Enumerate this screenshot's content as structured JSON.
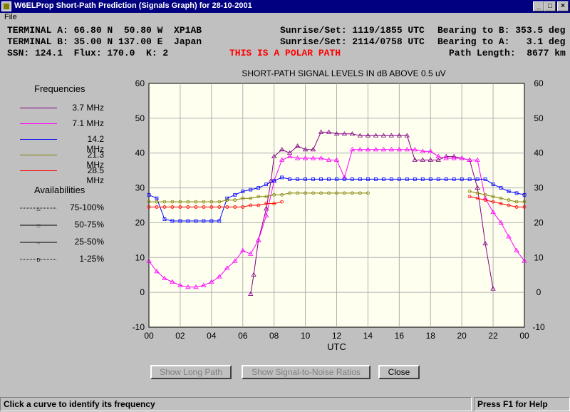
{
  "window": {
    "title": "W6ELProp Short-Path Prediction (Signals Graph) for 28-10-2001",
    "controls": [
      "_",
      "□",
      "×"
    ]
  },
  "menu": {
    "items": [
      "File"
    ]
  },
  "info": {
    "terminal_a": "TERMINAL A: 66.80 N  50.80 W  XP1AB",
    "terminal_b": "TERMINAL B: 35.00 N 137.00 E  Japan",
    "solar": "SSN: 124.1  Flux: 170.0  K: 2",
    "polar": "THIS IS A POLAR PATH",
    "sun_a": "Sunrise/Set: 1119/1855 UTC",
    "sun_b": "Sunrise/Set: 2114/0758 UTC",
    "bearing_b": "Bearing to B: 353.5 deg",
    "bearing_a": "Bearing to A:   3.1 deg",
    "path_length": "Path Length:  8677 km"
  },
  "legend": {
    "freq_title": "Frequencies",
    "frequencies": [
      {
        "label": "3.7 MHz",
        "color": "#800080"
      },
      {
        "label": "7.1 MHz",
        "color": "#ff00ff"
      },
      {
        "label": "14.2 MHz",
        "color": "#0000ff"
      },
      {
        "label": "21.3 MHz",
        "color": "#808000"
      },
      {
        "label": "28.5 MHz",
        "color": "#ff0000"
      }
    ],
    "avail_title": "Availabilities",
    "availabilities": [
      {
        "label": "75-100%",
        "marker": "triangle"
      },
      {
        "label": "50-75%",
        "marker": "square"
      },
      {
        "label": "25-50%",
        "marker": "circle"
      },
      {
        "label": "1-25%",
        "marker": "D"
      }
    ]
  },
  "chart_data": {
    "type": "line",
    "title": "SHORT-PATH SIGNAL LEVELS IN dB ABOVE 0.5 uV",
    "xlabel": "UTC",
    "ylabel": "",
    "xlim": [
      0,
      24
    ],
    "ylim": [
      -10,
      60
    ],
    "xticks": [
      "00",
      "02",
      "04",
      "06",
      "08",
      "10",
      "12",
      "14",
      "16",
      "18",
      "20",
      "22",
      "00"
    ],
    "yticks": [
      -10,
      0,
      10,
      20,
      30,
      40,
      50,
      60
    ],
    "grid": true,
    "series": [
      {
        "color": "#800080",
        "marker": "triangle",
        "x": [
          6.5,
          6.7,
          7.0,
          7.5,
          7.8,
          8.0,
          8.5,
          9.0,
          9.5,
          10.0,
          10.5,
          11.0,
          11.5,
          12.0,
          12.5,
          13.0,
          13.5,
          14.0,
          14.5,
          15.0,
          15.5,
          16.0,
          16.5,
          17.0,
          17.5,
          18.0,
          18.5,
          19.0,
          19.5,
          20.0,
          20.5,
          21.0,
          21.5,
          22.0
        ],
        "y": [
          -0.5,
          5,
          15,
          24,
          32,
          39,
          41,
          40,
          42,
          41,
          41,
          46,
          46,
          45.5,
          45.5,
          45.5,
          45,
          45,
          45,
          45,
          45,
          45,
          45,
          38,
          38,
          38,
          38,
          39,
          39,
          38.5,
          38,
          30,
          14,
          1
        ]
      },
      {
        "color": "#ff00ff",
        "marker": "triangle",
        "x": [
          0,
          0.5,
          1.0,
          1.5,
          2.0,
          2.5,
          3.0,
          3.5,
          4.0,
          4.5,
          5.0,
          5.5,
          6.0,
          6.5,
          7.0,
          7.5,
          8.0,
          8.5,
          9.0,
          9.5,
          10.0,
          10.5,
          11.0,
          11.5,
          12.0,
          12.5,
          13.0,
          13.5,
          14.0,
          14.5,
          15.0,
          15.5,
          16.0,
          16.5,
          17.0,
          17.5,
          18.0,
          18.5,
          19.0,
          19.5,
          20.0,
          20.5,
          21.0,
          21.5,
          22.0,
          22.5,
          23.0,
          23.5,
          24.0
        ],
        "y": [
          9,
          6,
          4,
          3,
          2,
          1.5,
          1.5,
          2,
          3,
          4.5,
          7,
          9,
          12,
          11,
          15,
          22,
          32,
          38,
          39,
          38.5,
          38.5,
          38.5,
          38.5,
          38,
          38,
          33,
          41,
          41,
          41,
          41,
          41,
          41,
          41,
          41,
          41,
          40.5,
          40.5,
          39,
          38.5,
          38.5,
          38.5,
          38,
          38,
          27,
          23,
          20,
          16,
          12,
          9
        ]
      },
      {
        "color": "#0000ff",
        "marker": "square",
        "x": [
          0,
          0.5,
          1.0,
          1.5,
          2.0,
          2.5,
          3.0,
          3.5,
          4.0,
          4.5,
          5.0,
          5.5,
          6.0,
          6.5,
          7.0,
          7.5,
          8.0,
          8.5,
          9.0,
          9.5,
          10.0,
          10.5,
          11.0,
          11.5,
          12.0,
          12.5,
          13.0,
          13.5,
          14.0,
          14.5,
          15.0,
          15.5,
          16.0,
          16.5,
          17.0,
          17.5,
          18.0,
          18.5,
          19.0,
          19.5,
          20.0,
          20.5,
          21.0,
          21.5,
          22.0,
          22.5,
          23.0,
          23.5,
          24.0
        ],
        "y": [
          28,
          27,
          21,
          20.5,
          20.5,
          20.5,
          20.5,
          20.5,
          20.5,
          20.5,
          27,
          28,
          29,
          29.5,
          30,
          31,
          32,
          33,
          32.5,
          32.5,
          32.5,
          32.5,
          32.5,
          32.5,
          32.5,
          32.5,
          32.5,
          32.5,
          32.5,
          32.5,
          32.5,
          32.5,
          32.5,
          32.5,
          32.5,
          32.5,
          32.5,
          32.5,
          32.5,
          32.5,
          32.5,
          32.5,
          32.5,
          32.5,
          31,
          30,
          29,
          28.5,
          28
        ]
      },
      {
        "color": "#808000",
        "marker": "circle",
        "x": [
          0,
          0.5,
          1.0,
          1.5,
          2.0,
          2.5,
          3.0,
          3.5,
          4.0,
          4.5,
          5.0,
          5.5,
          6.0,
          6.5,
          7.0,
          7.5,
          8.0,
          8.5,
          9.0,
          9.5,
          10.0,
          10.5,
          11.0,
          11.5,
          12.0,
          12.5,
          13.0,
          13.5,
          14.0
        ],
        "y": [
          26,
          26,
          26,
          26,
          26,
          26,
          26,
          26,
          26,
          26,
          26.5,
          26.5,
          27,
          27,
          27.5,
          27.5,
          28,
          28,
          28.5,
          28.5,
          28.5,
          28.5,
          28.5,
          28.5,
          28.5,
          28.5,
          28.5,
          28.5,
          28.5
        ]
      },
      {
        "color": "#808000",
        "marker": "circle",
        "x": [
          20.5,
          21.0,
          21.5,
          22.0,
          22.5,
          23.0,
          23.5,
          24.0
        ],
        "y": [
          29,
          28.5,
          28,
          27.5,
          27,
          26.5,
          26,
          26
        ]
      },
      {
        "color": "#ff0000",
        "marker": "circle",
        "x": [
          0,
          0.5,
          1.0,
          1.5,
          2.0,
          2.5,
          3.0,
          3.5,
          4.0,
          4.5,
          5.0,
          5.5,
          6.0,
          6.5,
          7.0,
          7.5,
          8.0,
          8.5
        ],
        "y": [
          24.5,
          24.5,
          24.5,
          24.5,
          24.5,
          24.5,
          24.5,
          24.5,
          24.5,
          24.5,
          24.5,
          24.5,
          24.5,
          25,
          25,
          25.5,
          25.5,
          26
        ]
      },
      {
        "color": "#ff0000",
        "marker": "circle",
        "x": [
          20.5,
          21.0,
          21.5,
          22.0,
          22.5,
          23.0,
          23.5,
          24.0
        ],
        "y": [
          27.5,
          27,
          26.5,
          26,
          25.5,
          25,
          24.5,
          24.5
        ]
      }
    ]
  },
  "buttons": {
    "long_path": "Show Long Path",
    "snr": "Show Signal-to-Noise Ratios",
    "close": "Close"
  },
  "status": {
    "left": "Click a curve to identify its frequency",
    "right": "Press F1 for Help"
  }
}
